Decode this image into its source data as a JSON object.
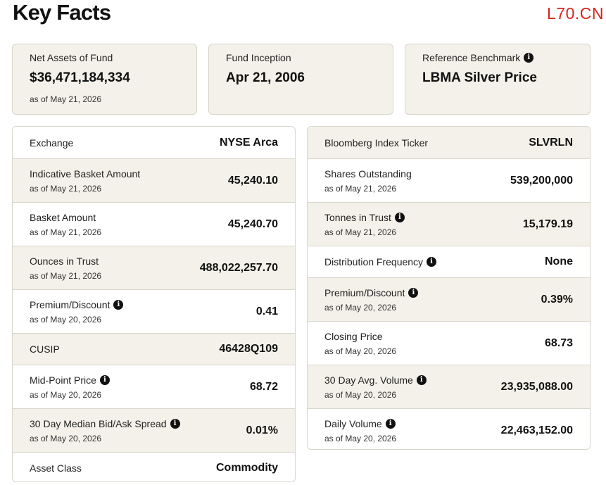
{
  "header": {
    "title": "Key Facts",
    "watermark": "L70.CN"
  },
  "cards": [
    {
      "label": "Net Assets of Fund",
      "value": "$36,471,184,334",
      "asof": "as of May 21, 2026"
    },
    {
      "label": "Fund Inception",
      "value": "Apr 21, 2006"
    },
    {
      "label": "Reference Benchmark",
      "value": "LBMA Silver Price",
      "icon": "info-icon"
    }
  ],
  "left_table": [
    {
      "label": "Exchange",
      "value": "NYSE Arca"
    },
    {
      "label": "Indicative Basket Amount",
      "asof": "as of May 21, 2026",
      "value": "45,240.10"
    },
    {
      "label": "Basket Amount",
      "asof": "as of May 21, 2026",
      "value": "45,240.70"
    },
    {
      "label": "Ounces in Trust",
      "asof": "as of May 21, 2026",
      "value": "488,022,257.70"
    },
    {
      "label": "Premium/Discount",
      "asof": "as of May 20, 2026",
      "value": "0.41",
      "icon": "info-icon"
    },
    {
      "label": "CUSIP",
      "value": "46428Q109"
    },
    {
      "label": "Mid-Point Price",
      "asof": "as of May 20, 2026",
      "value": "68.72",
      "icon": "info-icon"
    },
    {
      "label": "30 Day Median Bid/Ask Spread",
      "asof": "as of May 20, 2026",
      "value": "0.01%",
      "icon": "info-icon"
    },
    {
      "label": "Asset Class",
      "value": "Commodity"
    }
  ],
  "right_table": [
    {
      "label": "Bloomberg Index Ticker",
      "value": "SLVRLN"
    },
    {
      "label": "Shares Outstanding",
      "asof": "as of May 21, 2026",
      "value": "539,200,000"
    },
    {
      "label": "Tonnes in Trust",
      "asof": "as of May 21, 2026",
      "value": "15,179.19",
      "icon": "info-icon"
    },
    {
      "label": "Distribution Frequency",
      "value": "None",
      "icon": "info-icon"
    },
    {
      "label": "Premium/Discount",
      "asof": "as of May 20, 2026",
      "value": "0.39%",
      "icon": "info-icon"
    },
    {
      "label": "Closing Price",
      "asof": "as of May 20, 2026",
      "value": "68.73"
    },
    {
      "label": "30 Day Avg. Volume",
      "asof": "as of May 20, 2026",
      "value": "23,935,088.00",
      "icon": "info-icon"
    },
    {
      "label": "Daily Volume",
      "asof": "as of May 20, 2026",
      "value": "22,463,152.00",
      "icon": "info-icon"
    }
  ],
  "info_glyph": "i"
}
